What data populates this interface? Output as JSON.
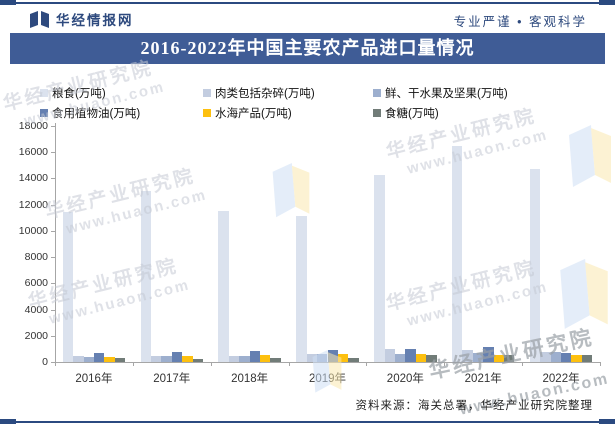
{
  "header": {
    "brand": "华经情报网",
    "tagline": "专业严谨 • 客观科学"
  },
  "title": "2016-2022年中国主要农产品进口量情况",
  "chart_data": {
    "type": "bar",
    "title": "2016-2022年中国主要农产品进口量情况",
    "categories": [
      "2016年",
      "2017年",
      "2018年",
      "2019年",
      "2020年",
      "2021年",
      "2022年"
    ],
    "series": [
      {
        "name": "粮食(万吨)",
        "color": "#dbe2ee",
        "values": [
          11467,
          13062,
          11555,
          11144,
          14262,
          16454,
          14687
        ]
      },
      {
        "name": "肉类包括杂碎(万吨)",
        "color": "#c3cde0",
        "values": [
          460,
          427,
          428,
          618,
          991,
          938,
          740
        ]
      },
      {
        "name": "鲜、干水果及坚果(万吨)",
        "color": "#9dafce",
        "values": [
          380,
          440,
          490,
          590,
          630,
          702,
          733
        ]
      },
      {
        "name": "食用植物油(万吨)",
        "color": "#6580b1",
        "values": [
          688,
          743,
          809,
          953,
          1000,
          1132,
          650
        ]
      },
      {
        "name": "水海产品(万吨)",
        "color": "#fdc00f",
        "values": [
          388,
          444,
          519,
          626,
          581,
          551,
          560
        ]
      },
      {
        "name": "食糖(万吨)",
        "color": "#717c78",
        "values": [
          306,
          229,
          280,
          339,
          527,
          567,
          527
        ]
      }
    ],
    "ylim": [
      0,
      18000
    ],
    "ytick_step": 2000,
    "legend_position": "top",
    "grid": false
  },
  "watermark": {
    "org": "华经产业研究院",
    "url": "www.huaon.com"
  },
  "footer": {
    "source": "资料来源：海关总署，华经产业研究院整理"
  },
  "colors": {
    "brand_blue": "#3f5c96",
    "border_blue": "#2b4a80",
    "highlight_yellow": "#fdc00f"
  }
}
